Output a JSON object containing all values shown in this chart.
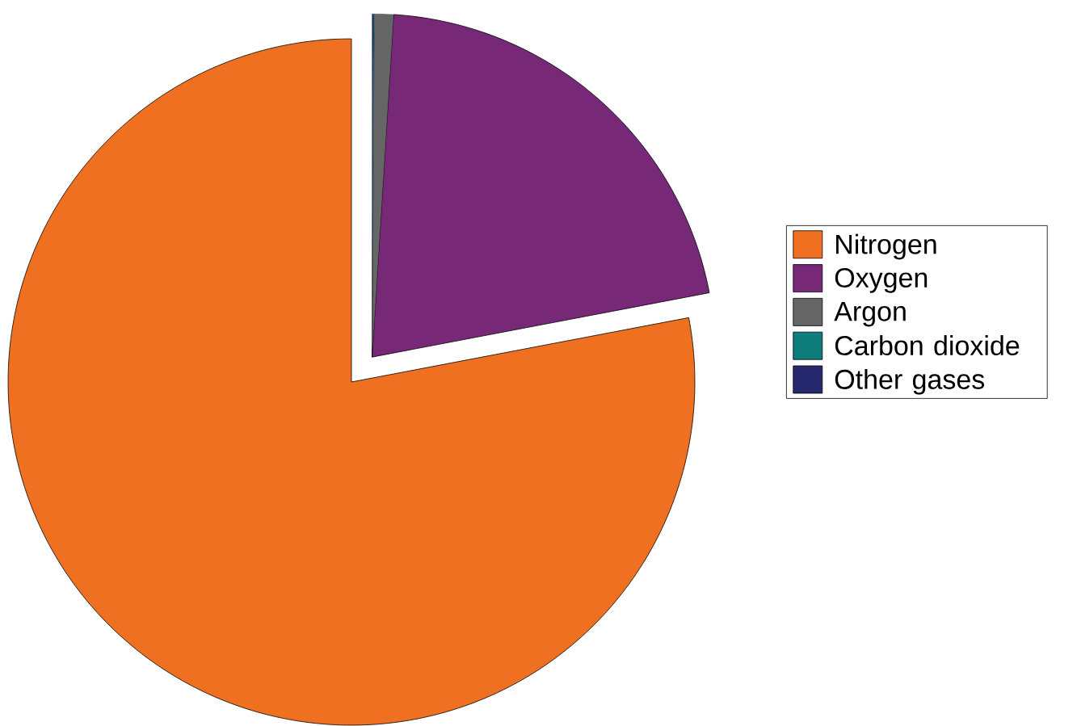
{
  "chart_data": {
    "type": "pie",
    "categories": [
      "Nitrogen",
      "Oxygen",
      "Argon",
      "Carbon dioxide",
      "Other gases"
    ],
    "values": [
      78,
      21,
      0.9,
      0.04,
      0.06
    ],
    "colors": [
      "#f07022",
      "#772877",
      "#666666",
      "#0e7c7b",
      "#26286e"
    ],
    "legend": "right"
  }
}
